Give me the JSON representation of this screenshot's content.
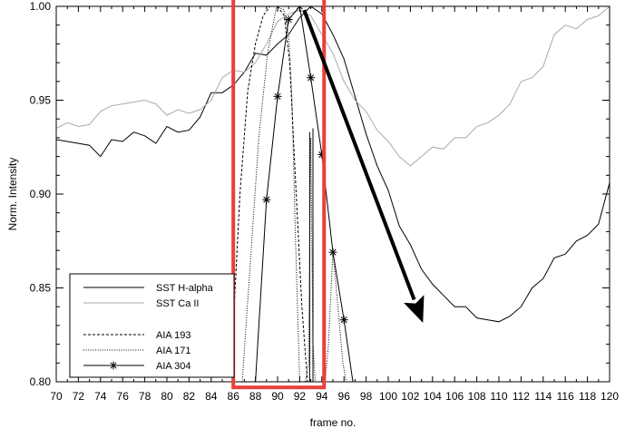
{
  "chart_data": {
    "type": "line",
    "title": "",
    "xlabel": "frame no.",
    "ylabel": "Norm. Intensity",
    "xlim": [
      70,
      120
    ],
    "ylim": [
      0.8,
      1.0
    ],
    "x_ticks": [
      70,
      72,
      74,
      76,
      78,
      80,
      82,
      84,
      86,
      88,
      90,
      92,
      94,
      96,
      98,
      100,
      102,
      104,
      106,
      108,
      110,
      112,
      114,
      116,
      118,
      120
    ],
    "y_ticks": [
      0.8,
      0.85,
      0.9,
      0.95,
      1.0
    ],
    "y_tick_labels": [
      "0.80",
      "0.85",
      "0.90",
      "0.95",
      "1.00"
    ],
    "grid": false,
    "legend_position": "bottom-left",
    "colors": {
      "h_alpha": "#000000",
      "ca_ii": "#aaaaaa",
      "aia193": "#000000",
      "aia171": "#000000",
      "aia304": "#000000",
      "highlight_box": "#e8403a",
      "arrow": "#000000"
    },
    "series": [
      {
        "name": "SST H-alpha",
        "style": "solid",
        "x": [
          70,
          71,
          72,
          73,
          74,
          75,
          76,
          77,
          78,
          79,
          80,
          81,
          82,
          83,
          84,
          85,
          86,
          87,
          88,
          89,
          90,
          91,
          92,
          93,
          94,
          95,
          96,
          97,
          98,
          99,
          100,
          101,
          102,
          103,
          104,
          105,
          106,
          107,
          108,
          109,
          110,
          111,
          112,
          113,
          114,
          115,
          116,
          117,
          118,
          119,
          120
        ],
        "y": [
          0.929,
          0.928,
          0.927,
          0.926,
          0.92,
          0.929,
          0.928,
          0.933,
          0.931,
          0.927,
          0.936,
          0.933,
          0.934,
          0.941,
          0.954,
          0.954,
          0.958,
          0.965,
          0.975,
          0.974,
          0.98,
          0.985,
          0.994,
          1.0,
          0.996,
          0.985,
          0.972,
          0.952,
          0.932,
          0.915,
          0.902,
          0.883,
          0.873,
          0.86,
          0.852,
          0.846,
          0.84,
          0.84,
          0.834,
          0.833,
          0.832,
          0.835,
          0.84,
          0.85,
          0.855,
          0.866,
          0.868,
          0.875,
          0.878,
          0.884,
          0.906
        ]
      },
      {
        "name": "SST Ca II",
        "style": "solid",
        "x": [
          70,
          71,
          72,
          73,
          74,
          75,
          76,
          77,
          78,
          79,
          80,
          81,
          82,
          83,
          84,
          85,
          86,
          87,
          88,
          89,
          90,
          91,
          92,
          93,
          94,
          95,
          96,
          97,
          98,
          99,
          100,
          101,
          102,
          103,
          104,
          105,
          106,
          107,
          108,
          109,
          110,
          111,
          112,
          113,
          114,
          115,
          116,
          117,
          118,
          119,
          120
        ],
        "y": [
          0.935,
          0.938,
          0.936,
          0.937,
          0.944,
          0.947,
          0.948,
          0.949,
          0.95,
          0.948,
          0.942,
          0.945,
          0.943,
          0.945,
          0.95,
          0.962,
          0.966,
          0.965,
          0.97,
          0.98,
          0.992,
          0.996,
          0.998,
          0.995,
          0.985,
          0.975,
          0.96,
          0.95,
          0.944,
          0.934,
          0.928,
          0.92,
          0.915,
          0.92,
          0.925,
          0.924,
          0.93,
          0.93,
          0.936,
          0.938,
          0.942,
          0.948,
          0.96,
          0.962,
          0.968,
          0.985,
          0.99,
          0.988,
          0.993,
          0.995,
          1.0
        ]
      },
      {
        "name": "AIA 193",
        "style": "dashed",
        "x": [
          86,
          86.6,
          87.3,
          88,
          88.7,
          89.3,
          90,
          90.6,
          91.1,
          91.6,
          92.2,
          92.7
        ],
        "y": [
          0.83,
          0.9,
          0.955,
          0.98,
          0.995,
          1.0,
          1.0,
          0.995,
          0.97,
          0.91,
          0.84,
          0.8
        ]
      },
      {
        "name": "AIA 171",
        "style": "dotted",
        "x": [
          86.8,
          87.5,
          88.3,
          89.1,
          89.9,
          90.6,
          91.0,
          91.3,
          91.6,
          92.0,
          92.5,
          92.8,
          93.0,
          93.2,
          93.4,
          93.6,
          93.8,
          94.0,
          94.3,
          94.6,
          95.0,
          95.3,
          95.6,
          95.9,
          96.2
        ],
        "y": [
          0.8,
          0.86,
          0.93,
          0.975,
          1.0,
          0.998,
          0.985,
          0.95,
          0.88,
          0.8,
          0.8,
          0.81,
          0.93,
          0.82,
          0.8,
          0.8,
          0.8,
          0.8,
          0.8,
          0.82,
          0.87,
          0.85,
          0.83,
          0.81,
          0.8
        ]
      },
      {
        "name": "AIA 304",
        "style": "solid-star",
        "x": [
          88,
          89,
          90,
          91,
          92,
          93,
          94,
          95,
          96,
          96.8
        ],
        "y": [
          0.8,
          0.897,
          0.952,
          0.993,
          1.0,
          0.962,
          0.921,
          0.869,
          0.833,
          0.8
        ]
      }
    ],
    "extra_lines": [
      {
        "style": "solid",
        "x": [
          92.9,
          92.9
        ],
        "y": [
          0.8,
          0.933
        ]
      },
      {
        "style": "solid",
        "x": [
          93.2,
          93.2
        ],
        "y": [
          0.8,
          0.935
        ]
      }
    ],
    "highlight_box": {
      "x": [
        86,
        94.2
      ],
      "y": [
        0.797,
        1.012
      ]
    },
    "arrow": {
      "from": [
        92.4,
        0.998
      ],
      "to": [
        103.1,
        0.832
      ]
    }
  }
}
